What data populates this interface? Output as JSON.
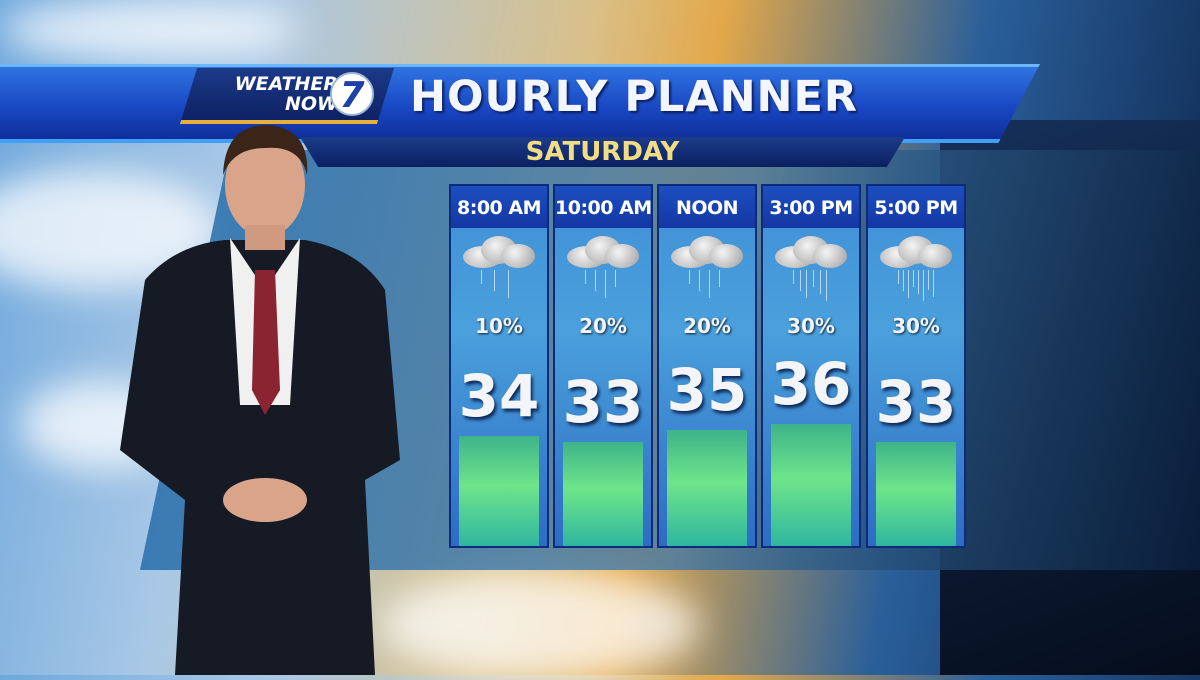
{
  "branding": {
    "logo_text_line1": "WEATHER",
    "logo_text_line2": "NOW",
    "logo_number": "7"
  },
  "header": {
    "title": "HOURLY PLANNER",
    "day": "SATURDAY"
  },
  "colors": {
    "title_band": "#1a48c4",
    "day_text": "#f2dd82",
    "temp_bar": "#6ee58a",
    "column_bg": "#3f8fd6"
  },
  "forecast": [
    {
      "time": "8:00 AM",
      "icon": "rain-cloud-icon",
      "precip": "10%",
      "temp": "34",
      "temp_value": 34
    },
    {
      "time": "10:00 AM",
      "icon": "rain-cloud-icon",
      "precip": "20%",
      "temp": "33",
      "temp_value": 33
    },
    {
      "time": "NOON",
      "icon": "rain-cloud-icon",
      "precip": "20%",
      "temp": "35",
      "temp_value": 35
    },
    {
      "time": "3:00 PM",
      "icon": "rain-cloud-icon",
      "precip": "30%",
      "temp": "36",
      "temp_value": 36
    },
    {
      "time": "5:00 PM",
      "icon": "rain-cloud-icon",
      "precip": "30%",
      "temp": "33",
      "temp_value": 33
    }
  ]
}
